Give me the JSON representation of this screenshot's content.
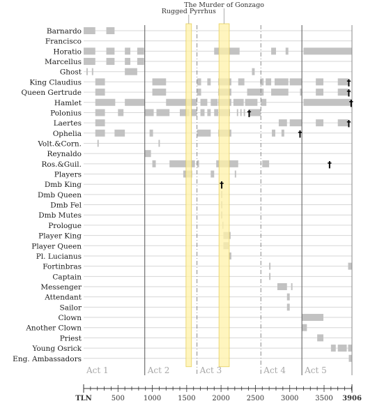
{
  "chart_data": {
    "type": "timeline",
    "title": "",
    "x_axis_label": "TLN",
    "xlim": [
      0,
      3906
    ],
    "x_ticks": [
      500,
      1000,
      1500,
      2000,
      2500,
      3000,
      3500
    ],
    "x_end_label": "3906",
    "grid": true,
    "colors": {
      "bar": "#c2c2c2",
      "highlight": "#fff2a8",
      "highlight_edge": "#e6cf5c",
      "row_line": "#d6d6d6",
      "act_line": "#555555",
      "scene_line": "#8a8a8a"
    },
    "act_boundaries": [
      890,
      3177
    ],
    "scene_boundaries": [
      1650,
      2580
    ],
    "acts": [
      {
        "label": "Act 1",
        "start": 0
      },
      {
        "label": "Act 2",
        "start": 890
      },
      {
        "label": "Act 3",
        "start": 1650
      },
      {
        "label": "Act 4",
        "start": 2580
      },
      {
        "label": "Act 5",
        "start": 3177
      }
    ],
    "highlights": [
      {
        "label": "Rugged Pyrrhus",
        "start": 1490,
        "end": 1570
      },
      {
        "label": "The Murder of Gonzago",
        "start": 1970,
        "end": 2120
      }
    ],
    "death_marker": "†",
    "characters": [
      {
        "name": "Barnardo",
        "segments": [
          [
            0,
            170
          ],
          [
            330,
            450
          ]
        ]
      },
      {
        "name": "Francisco",
        "segments": []
      },
      {
        "name": "Horatio",
        "segments": [
          [
            0,
            170
          ],
          [
            330,
            450
          ],
          [
            600,
            680
          ],
          [
            780,
            880
          ],
          [
            1900,
            2270
          ],
          [
            2730,
            2800
          ],
          [
            2940,
            2980
          ],
          [
            3200,
            3906
          ]
        ]
      },
      {
        "name": "Marcellus",
        "segments": [
          [
            0,
            170
          ],
          [
            330,
            450
          ],
          [
            600,
            680
          ],
          [
            780,
            880
          ]
        ]
      },
      {
        "name": "Ghost",
        "segments": [
          [
            40,
            60
          ],
          [
            120,
            140
          ],
          [
            600,
            780
          ],
          [
            2450,
            2490
          ]
        ]
      },
      {
        "name": "King Claudius",
        "segments": [
          [
            170,
            310
          ],
          [
            1000,
            1200
          ],
          [
            1650,
            1710
          ],
          [
            1800,
            1850
          ],
          [
            1960,
            2150
          ],
          [
            2250,
            2340
          ],
          [
            2570,
            2620
          ],
          [
            2650,
            2730
          ],
          [
            2780,
            2980
          ],
          [
            3000,
            3177
          ],
          [
            3380,
            3490
          ],
          [
            3700,
            3850
          ]
        ],
        "death": 3860
      },
      {
        "name": "Queen Gertrude",
        "segments": [
          [
            170,
            310
          ],
          [
            1000,
            1200
          ],
          [
            1650,
            1710
          ],
          [
            1960,
            2150
          ],
          [
            2380,
            2620
          ],
          [
            2730,
            2980
          ],
          [
            3150,
            3177
          ],
          [
            3380,
            3490
          ],
          [
            3700,
            3850
          ]
        ],
        "death": 3860
      },
      {
        "name": "Hamlet",
        "segments": [
          [
            170,
            460
          ],
          [
            600,
            890
          ],
          [
            1200,
            1650
          ],
          [
            1700,
            1800
          ],
          [
            1850,
            1950
          ],
          [
            1960,
            2150
          ],
          [
            2180,
            2330
          ],
          [
            2350,
            2530
          ],
          [
            2580,
            2660
          ],
          [
            3200,
            3906
          ]
        ],
        "death": 3895
      },
      {
        "name": "Polonius",
        "segments": [
          [
            170,
            310
          ],
          [
            500,
            580
          ],
          [
            890,
            1020
          ],
          [
            1060,
            1250
          ],
          [
            1400,
            1540
          ],
          [
            1560,
            1650
          ],
          [
            1700,
            1760
          ],
          [
            1800,
            1850
          ],
          [
            1900,
            1960
          ],
          [
            1970,
            2130
          ],
          [
            2230,
            2250
          ],
          [
            2280,
            2300
          ],
          [
            2330,
            2350
          ],
          [
            2410,
            2580
          ]
        ],
        "death": 2410
      },
      {
        "name": "Laertes",
        "segments": [
          [
            170,
            310
          ],
          [
            2840,
            2960
          ],
          [
            3000,
            3177
          ],
          [
            3380,
            3490
          ],
          [
            3700,
            3850
          ]
        ],
        "death": 3860
      },
      {
        "name": "Ophelia",
        "segments": [
          [
            170,
            310
          ],
          [
            450,
            600
          ],
          [
            960,
            1010
          ],
          [
            1650,
            1850
          ],
          [
            1960,
            2150
          ],
          [
            2740,
            2790
          ],
          [
            2880,
            2920
          ]
        ],
        "death": 3150
      },
      {
        "name": "Volt.&Corn.",
        "segments": [
          [
            200,
            220
          ],
          [
            1090,
            1110
          ]
        ]
      },
      {
        "name": "Reynaldo",
        "segments": [
          [
            890,
            980
          ]
        ]
      },
      {
        "name": "Ros.&Guil.",
        "segments": [
          [
            1000,
            1050
          ],
          [
            1250,
            1620
          ],
          [
            1650,
            1680
          ],
          [
            1930,
            2250
          ],
          [
            2600,
            2700
          ]
        ],
        "death": 3580
      },
      {
        "name": "Players",
        "segments": [
          [
            1450,
            1580
          ],
          [
            1850,
            1900
          ],
          [
            2200,
            2220
          ]
        ]
      },
      {
        "name": "Dmb King",
        "segments": [],
        "death": 2010
      },
      {
        "name": "Dmb Queen",
        "segments": [
          [
            2000,
            2020
          ]
        ]
      },
      {
        "name": "Dmb Fel",
        "segments": [
          [
            2000,
            2020
          ]
        ]
      },
      {
        "name": "Dmb Mutes",
        "segments": [
          [
            2000,
            2020
          ]
        ]
      },
      {
        "name": "Prologue",
        "segments": [
          [
            2020,
            2035
          ]
        ]
      },
      {
        "name": "Player King",
        "segments": [
          [
            2035,
            2140
          ]
        ]
      },
      {
        "name": "Player Queen",
        "segments": [
          [
            2035,
            2110
          ]
        ]
      },
      {
        "name": "Pl. Lucianus",
        "segments": [
          [
            2110,
            2150
          ]
        ]
      },
      {
        "name": "Fortinbras",
        "segments": [
          [
            2700,
            2720
          ],
          [
            3850,
            3906
          ]
        ]
      },
      {
        "name": "Captain",
        "segments": [
          [
            2700,
            2720
          ]
        ]
      },
      {
        "name": "Messenger",
        "segments": [
          [
            2820,
            2960
          ],
          [
            3020,
            3040
          ]
        ]
      },
      {
        "name": "Attendant",
        "segments": [
          [
            2960,
            3000
          ]
        ]
      },
      {
        "name": "Sailor",
        "segments": [
          [
            2960,
            3000
          ]
        ]
      },
      {
        "name": "Clown",
        "segments": [
          [
            3177,
            3490
          ]
        ]
      },
      {
        "name": "Another Clown",
        "segments": [
          [
            3177,
            3250
          ]
        ]
      },
      {
        "name": "Priest",
        "segments": [
          [
            3400,
            3490
          ]
        ]
      },
      {
        "name": "Young Osrick",
        "segments": [
          [
            3600,
            3670
          ],
          [
            3700,
            3830
          ],
          [
            3850,
            3906
          ]
        ]
      },
      {
        "name": "Eng. Ambassadors",
        "segments": [
          [
            3860,
            3906
          ]
        ]
      }
    ]
  }
}
